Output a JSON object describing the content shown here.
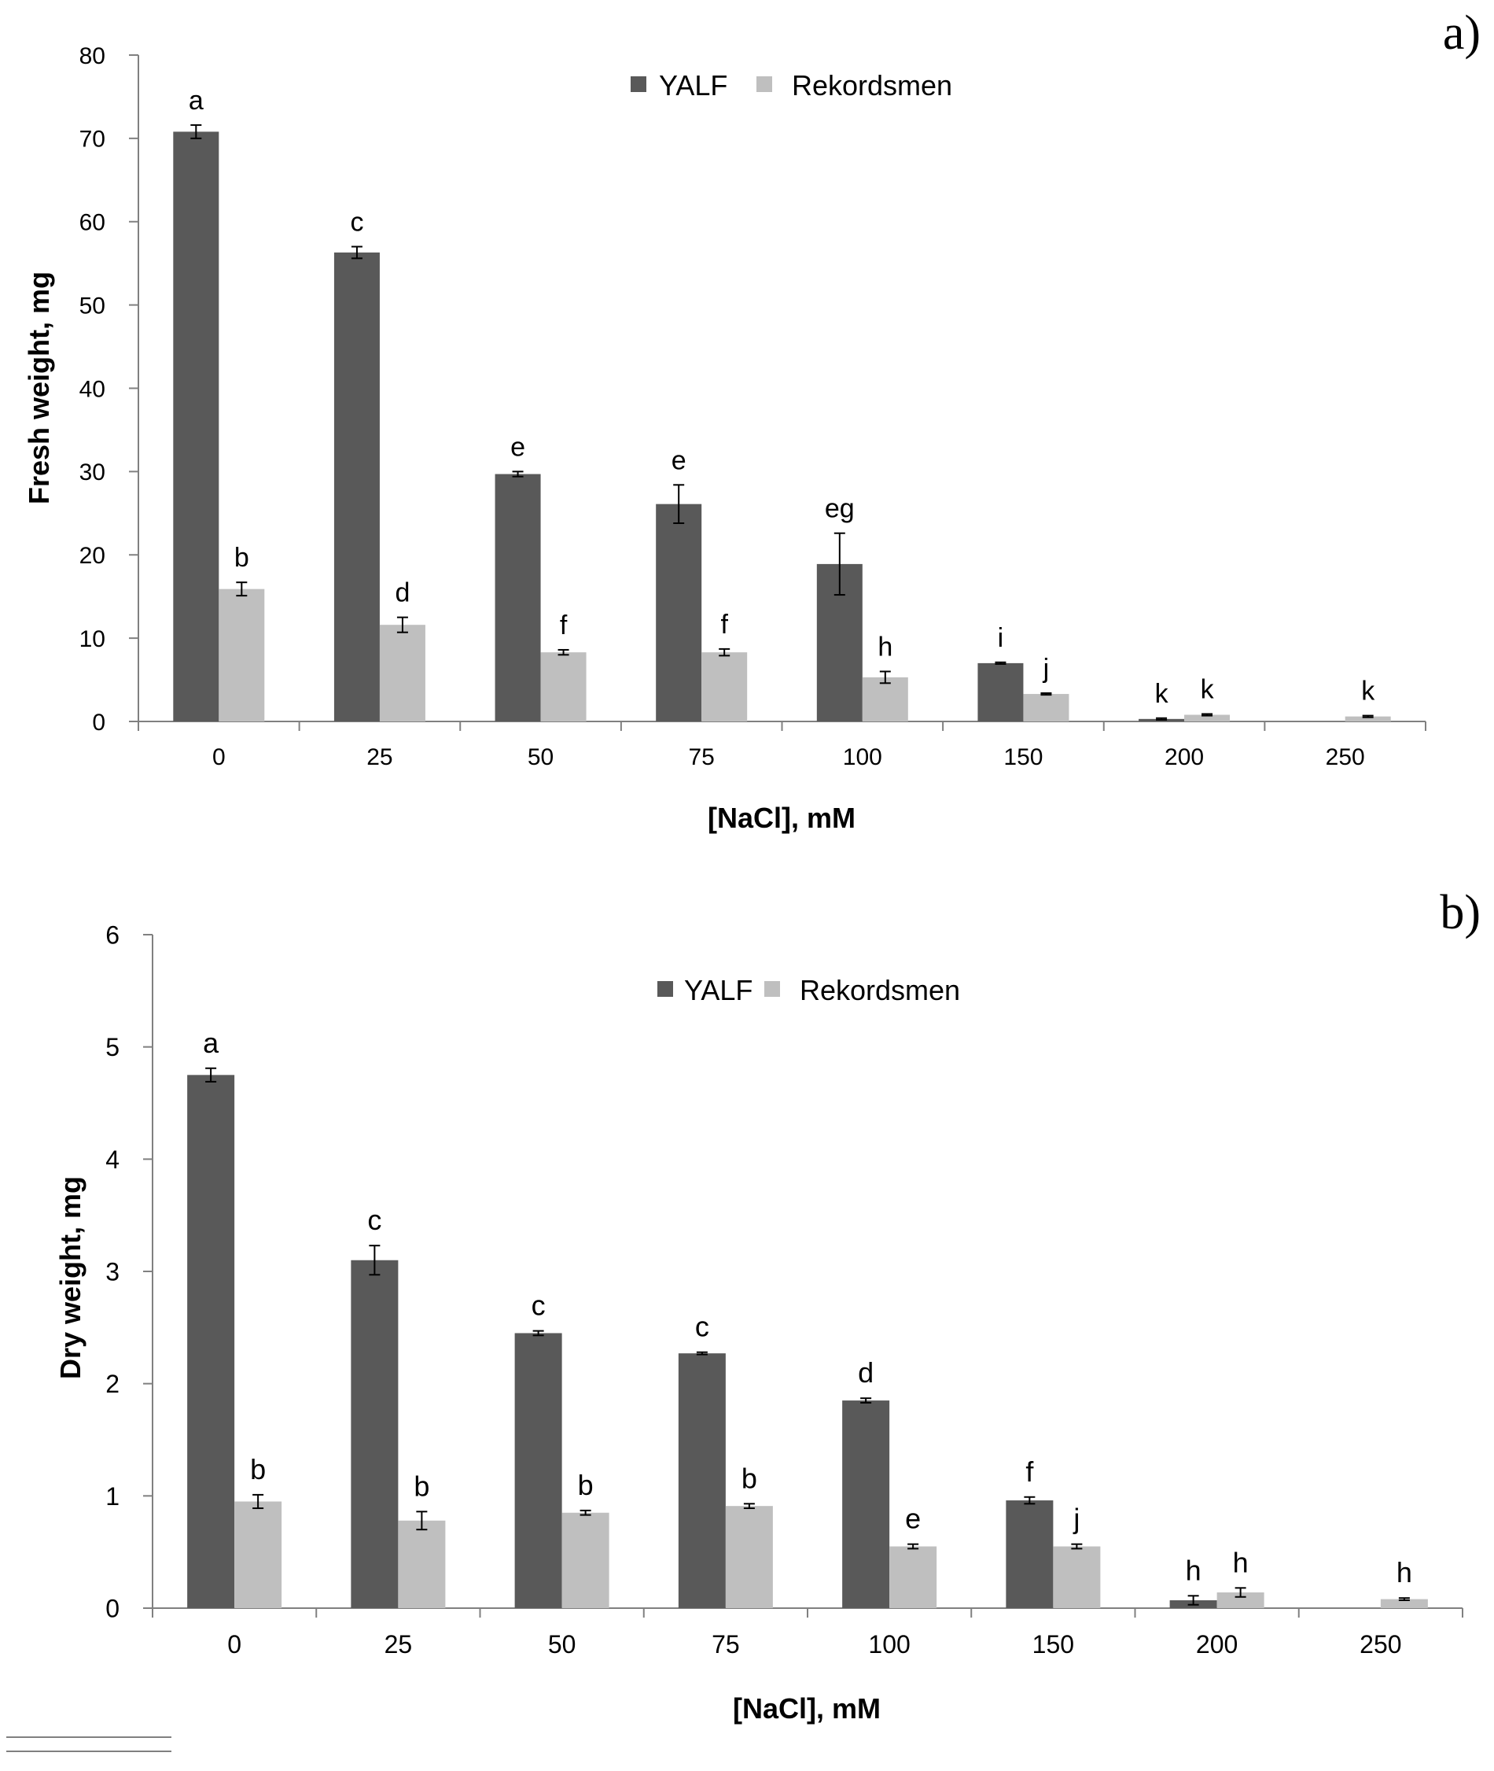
{
  "chart_data": [
    {
      "panel": "a)",
      "type": "bar",
      "title": "",
      "xlabel": "[NaCl], mM",
      "ylabel": "Fresh weight, mg",
      "categories": [
        "0",
        "25",
        "50",
        "75",
        "100",
        "150",
        "200",
        "250"
      ],
      "ylim": [
        0,
        80
      ],
      "yticks": [
        "0",
        "10",
        "20",
        "30",
        "40",
        "50",
        "60",
        "70",
        "80"
      ],
      "legend_position": "top-center",
      "grid": false,
      "series": [
        {
          "name": "YALF",
          "color": "#595959",
          "values": [
            70.8,
            56.3,
            29.7,
            26.1,
            18.9,
            7.0,
            0.3,
            0
          ],
          "errors": [
            0.8,
            0.7,
            0.3,
            2.3,
            3.7,
            0.1,
            0.1,
            0
          ],
          "letters": [
            "a",
            "c",
            "e",
            "e",
            "eg",
            "i",
            "k",
            ""
          ]
        },
        {
          "name": "Rekordsmen",
          "color": "#bfbfbf",
          "values": [
            15.9,
            11.6,
            8.3,
            8.3,
            5.3,
            3.3,
            0.8,
            0.6
          ],
          "errors": [
            0.8,
            0.9,
            0.3,
            0.4,
            0.7,
            0.1,
            0.1,
            0.1
          ],
          "letters": [
            "b",
            "d",
            "f",
            "f",
            "h",
            "j",
            "k",
            "k"
          ]
        }
      ]
    },
    {
      "panel": "b)",
      "type": "bar",
      "title": "",
      "xlabel": "[NaCl], mM",
      "ylabel": "Dry weight, mg",
      "categories": [
        "0",
        "25",
        "50",
        "75",
        "100",
        "150",
        "200",
        "250"
      ],
      "ylim": [
        0,
        6
      ],
      "yticks": [
        "0",
        "1",
        "2",
        "3",
        "4",
        "5",
        "6"
      ],
      "legend_position": "top-center",
      "grid": false,
      "series": [
        {
          "name": "YALF",
          "color": "#595959",
          "values": [
            4.75,
            3.1,
            2.45,
            2.27,
            1.85,
            0.96,
            0.07,
            0
          ],
          "errors": [
            0.06,
            0.13,
            0.02,
            0.01,
            0.02,
            0.03,
            0.04,
            0
          ],
          "letters": [
            "a",
            "c",
            "c",
            "c",
            "d",
            "f",
            "h",
            ""
          ]
        },
        {
          "name": "Rekordsmen",
          "color": "#bfbfbf",
          "values": [
            0.95,
            0.78,
            0.85,
            0.91,
            0.55,
            0.55,
            0.14,
            0.08
          ],
          "errors": [
            0.06,
            0.08,
            0.02,
            0.02,
            0.02,
            0.02,
            0.04,
            0.01
          ],
          "letters": [
            "b",
            "b",
            "b",
            "b",
            "e",
            "j",
            "h",
            "h"
          ]
        }
      ]
    }
  ]
}
